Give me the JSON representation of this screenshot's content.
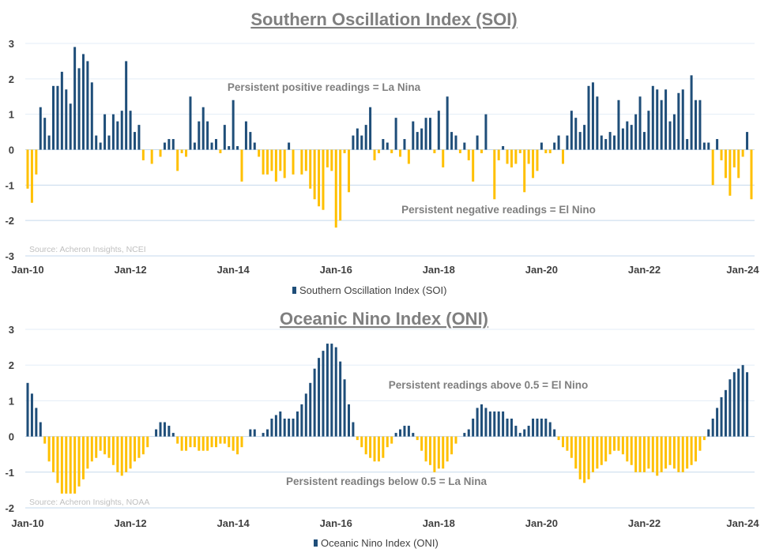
{
  "colors": {
    "positive": "#1f4e79",
    "negative": "#ffc000",
    "grid": "#c5d9ec",
    "title": "#7f7f7f"
  },
  "chart_data": [
    {
      "type": "bar",
      "title": "Southern Oscillation Index (SOI)",
      "legend": "Southern Oscillation Index (SOI)",
      "legend_position": "bottom",
      "source": "Source: Acheron Insights, NCEI",
      "x_start": "Jan-10",
      "frequency": "monthly",
      "x_tick_labels": [
        "Jan-10",
        "Jan-12",
        "Jan-14",
        "Jan-16",
        "Jan-18",
        "Jan-20",
        "Jan-22",
        "Jan-24"
      ],
      "y_ticks": [
        3,
        2,
        1,
        0,
        -1,
        -2,
        -3
      ],
      "ylim": [
        -3,
        3
      ],
      "grid": true,
      "annotations": [
        "Persistent positive readings = La Nina",
        "Persistent negative readings = El Nino"
      ],
      "values": [
        -1.1,
        -1.5,
        -0.7,
        1.2,
        0.9,
        0.4,
        1.8,
        1.8,
        2.2,
        1.7,
        1.3,
        2.9,
        2.3,
        2.7,
        2.5,
        1.9,
        0.4,
        0.2,
        1.0,
        0.4,
        1.0,
        0.8,
        1.1,
        2.5,
        1.1,
        0.5,
        0.7,
        -0.3,
        0,
        -0.4,
        0,
        -0.2,
        0.2,
        0.3,
        0.3,
        -0.6,
        -0.1,
        -0.2,
        1.5,
        0.2,
        0.8,
        1.2,
        0.8,
        0.2,
        0.3,
        -0.1,
        0.7,
        0.1,
        1.4,
        0.1,
        -0.9,
        0.8,
        0.5,
        0.2,
        -0.2,
        -0.7,
        -0.7,
        -0.6,
        -0.9,
        -0.6,
        -0.8,
        0.2,
        -0.7,
        0,
        -0.7,
        -0.6,
        -1.1,
        -1.4,
        -1.6,
        -1.7,
        -0.5,
        -0.6,
        -2.2,
        -2.0,
        -0.1,
        -1.2,
        0.4,
        0.6,
        0.4,
        0.7,
        1.2,
        -0.3,
        -0.1,
        0.3,
        0.2,
        -0.1,
        0.9,
        -0.2,
        0.3,
        -0.4,
        0.8,
        0.5,
        0.6,
        0.9,
        0.9,
        -0.1,
        1.1,
        -0.5,
        1.5,
        0.5,
        0.4,
        -0.1,
        0.2,
        -0.3,
        -0.9,
        0.4,
        -0.1,
        1.0,
        0,
        -1.4,
        -0.3,
        0.1,
        -0.4,
        -0.5,
        -0.4,
        -0.1,
        -1.2,
        -0.4,
        -0.8,
        -0.6,
        0.2,
        -0.1,
        -0.1,
        0.2,
        0.4,
        -0.4,
        0.4,
        1.1,
        0.9,
        0.5,
        0.7,
        1.8,
        1.9,
        1.5,
        0.4,
        0.3,
        0.5,
        0.4,
        1.4,
        0.6,
        0.8,
        0.7,
        1.0,
        1.5,
        0.5,
        1.1,
        1.8,
        1.7,
        1.4,
        1.7,
        0.8,
        1.0,
        1.6,
        1.7,
        0.3,
        2.1,
        1.4,
        1.4,
        0.2,
        0.2,
        -1.0,
        0.3,
        -0.3,
        -0.8,
        -1.3,
        -0.5,
        -0.8,
        -0.2,
        0.5,
        -1.4
      ]
    },
    {
      "type": "bar",
      "title": "Oceanic Nino Index (ONI)",
      "legend": "Oceanic Nino Index (ONI)",
      "legend_position": "bottom",
      "source": "Source: Acheron Insights, NOAA",
      "x_start": "Jan-10",
      "frequency": "monthly",
      "x_tick_labels": [
        "Jan-10",
        "Jan-12",
        "Jan-14",
        "Jan-16",
        "Jan-18",
        "Jan-20",
        "Jan-22",
        "Jan-24"
      ],
      "y_ticks": [
        3,
        2,
        1,
        0,
        -1,
        -2
      ],
      "ylim": [
        -2,
        3
      ],
      "grid": true,
      "annotations": [
        "Persistent readings above 0.5 = El Nino",
        "Persistent readings below 0.5 = La Nina"
      ],
      "values": [
        1.5,
        1.2,
        0.8,
        0.4,
        -0.2,
        -0.7,
        -1.0,
        -1.3,
        -1.6,
        -1.6,
        -1.6,
        -1.6,
        -1.4,
        -1.2,
        -0.9,
        -0.7,
        -0.6,
        -0.4,
        -0.5,
        -0.6,
        -0.8,
        -1.0,
        -1.1,
        -1.0,
        -0.9,
        -0.7,
        -0.6,
        -0.5,
        -0.3,
        0,
        0.2,
        0.4,
        0.4,
        0.3,
        0.1,
        -0.2,
        -0.4,
        -0.4,
        -0.3,
        -0.3,
        -0.4,
        -0.4,
        -0.4,
        -0.3,
        -0.3,
        -0.2,
        -0.2,
        -0.3,
        -0.4,
        -0.5,
        -0.3,
        0,
        0.2,
        0.2,
        0,
        0.1,
        0.2,
        0.5,
        0.6,
        0.7,
        0.5,
        0.5,
        0.5,
        0.7,
        0.9,
        1.2,
        1.5,
        1.9,
        2.2,
        2.4,
        2.6,
        2.6,
        2.5,
        2.1,
        1.6,
        0.9,
        0.4,
        -0.1,
        -0.3,
        -0.5,
        -0.6,
        -0.7,
        -0.7,
        -0.6,
        -0.3,
        -0.2,
        0.1,
        0.2,
        0.3,
        0.3,
        0.1,
        -0.1,
        -0.4,
        -0.7,
        -0.8,
        -1.0,
        -0.9,
        -0.9,
        -0.7,
        -0.5,
        -0.2,
        0,
        0.1,
        0.2,
        0.5,
        0.8,
        0.9,
        0.8,
        0.7,
        0.7,
        0.7,
        0.7,
        0.5,
        0.5,
        0.3,
        0.1,
        0.2,
        0.3,
        0.5,
        0.5,
        0.5,
        0.5,
        0.4,
        0.2,
        -0.1,
        -0.3,
        -0.4,
        -0.6,
        -0.9,
        -1.2,
        -1.3,
        -1.2,
        -1.0,
        -0.9,
        -0.8,
        -0.7,
        -0.5,
        -0.4,
        -0.4,
        -0.5,
        -0.7,
        -0.8,
        -1.0,
        -1.0,
        -1.0,
        -0.9,
        -1.0,
        -1.1,
        -1.0,
        -0.9,
        -0.8,
        -0.9,
        -1.0,
        -1.0,
        -0.9,
        -0.8,
        -0.7,
        -0.4,
        -0.1,
        0.2,
        0.5,
        0.8,
        1.1,
        1.3,
        1.6,
        1.8,
        1.9,
        2.0,
        1.8
      ]
    }
  ]
}
